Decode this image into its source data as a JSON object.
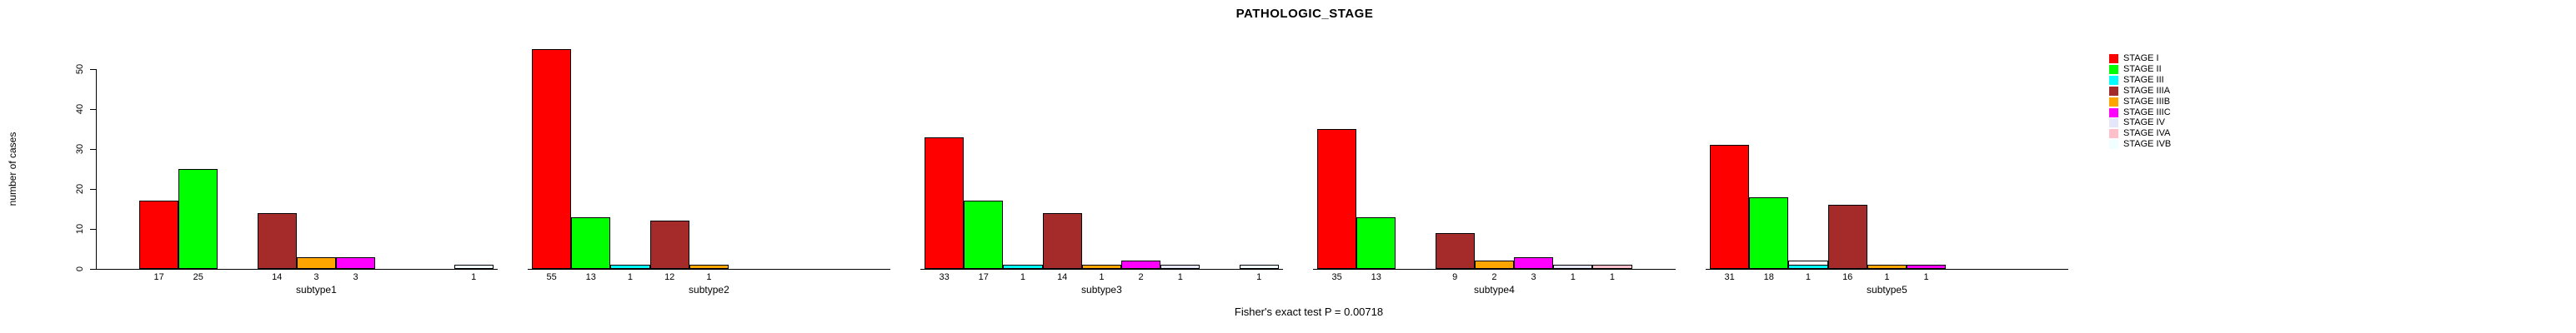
{
  "chart_data": {
    "type": "grouped_bar",
    "title": "PATHOLOGIC_STAGE",
    "ylabel": "number of cases",
    "footnote": "Fisher's exact test P = 0.00718",
    "yticks": [
      0,
      10,
      20,
      30,
      40,
      50
    ],
    "ylim": [
      0,
      55
    ],
    "grid": false,
    "legend_position": "top-right",
    "categories": [
      "subtype1",
      "subtype2",
      "subtype3",
      "subtype4",
      "subtype5"
    ],
    "stages": [
      {
        "name": "STAGE I",
        "color": "#FF0000"
      },
      {
        "name": "STAGE II",
        "color": "#00FF00"
      },
      {
        "name": "STAGE III",
        "color": "#00FFFF"
      },
      {
        "name": "STAGE IIIA",
        "color": "#A52A2A"
      },
      {
        "name": "STAGE IIIB",
        "color": "#FFA500"
      },
      {
        "name": "STAGE IIIC",
        "color": "#FF00FF"
      },
      {
        "name": "STAGE IV",
        "color": "#E6E6FA"
      },
      {
        "name": "STAGE IVA",
        "color": "#FFC0CB"
      },
      {
        "name": "STAGE IVB",
        "color": "#F0FFFF"
      }
    ],
    "series": [
      {
        "name": "STAGE I",
        "values": [
          17,
          55,
          33,
          35,
          31
        ]
      },
      {
        "name": "STAGE II",
        "values": [
          25,
          13,
          17,
          13,
          18
        ]
      },
      {
        "name": "STAGE III",
        "values": [
          0,
          1,
          1,
          0,
          1
        ]
      },
      {
        "name": "STAGE IIIA",
        "values": [
          14,
          12,
          14,
          9,
          16
        ]
      },
      {
        "name": "STAGE IIIB",
        "values": [
          3,
          1,
          1,
          2,
          1
        ]
      },
      {
        "name": "STAGE IIIC",
        "values": [
          3,
          0,
          2,
          3,
          1
        ]
      },
      {
        "name": "STAGE IV",
        "values": [
          0,
          0,
          1,
          1,
          0
        ]
      },
      {
        "name": "STAGE IVA",
        "values": [
          0,
          0,
          0,
          1,
          0
        ]
      },
      {
        "name": "STAGE IVB",
        "values": [
          1,
          0,
          1,
          0,
          0
        ]
      }
    ],
    "extra_bars": [
      {
        "category": "subtype5",
        "stage_slot": 2,
        "value": 2,
        "color": "#FFFFFF",
        "note": "unlabeled white-filled bar drawn behind the STAGE III bar"
      }
    ],
    "bar_label_rule": "each nonzero bar shows its count below the baseline"
  }
}
